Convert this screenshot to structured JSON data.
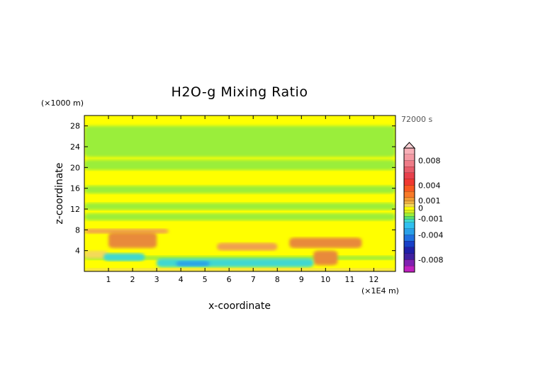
{
  "chart_data": {
    "type": "heatmap",
    "title": "H2O-g Mixing Ratio",
    "xlabel": "x-coordinate",
    "ylabel": "z-coordinate",
    "x_unit": "(×1E4 m)",
    "y_unit": "(×1000 m)",
    "time_label": "72000 s",
    "x_ticks": [
      "1",
      "2",
      "3",
      "4",
      "5",
      "6",
      "7",
      "8",
      "9",
      "10",
      "11",
      "12"
    ],
    "y_ticks": [
      "4",
      "8",
      "12",
      "16",
      "20",
      "24",
      "28"
    ],
    "xlim": [
      0,
      12.9
    ],
    "ylim": [
      0,
      30
    ],
    "colorbar": {
      "labels": [
        "0.008",
        "0.004",
        "0.001",
        "0",
        "-0.001",
        "-0.004",
        "-0.008"
      ],
      "values": [
        0.008,
        0.004,
        0.001,
        0,
        -0.001,
        -0.004,
        -0.008
      ],
      "range": [
        -0.01,
        0.01
      ],
      "extend_max": true
    },
    "colors": {
      "background_value": "#ffff00",
      "slight_negative": "#9aee3a",
      "slight_positive": "#f4d95a",
      "moderate_positive": "#f0a050",
      "strong_positive": "#e88a3a",
      "negative_cyan": "#3fd8d0",
      "negative_blue": "#2aa0e8"
    },
    "bands": [
      {
        "z": [
          2.2,
          3.0
        ],
        "x": [
          0,
          12.9
        ],
        "value": -0.0006
      },
      {
        "z": [
          22,
          28
        ],
        "x": [
          0,
          12.9
        ],
        "value": -0.0006
      },
      {
        "z": [
          19.5,
          21.5
        ],
        "x": [
          0,
          12.9
        ],
        "value": -0.0006
      },
      {
        "z": [
          15,
          16.5
        ],
        "x": [
          0,
          12.9
        ],
        "value": -0.0006
      },
      {
        "z": [
          11.8,
          13.2
        ],
        "x": [
          0,
          12.9
        ],
        "value": -0.0006
      },
      {
        "z": [
          9.8,
          11.2
        ],
        "x": [
          0,
          12.9
        ],
        "value": -0.0006
      },
      {
        "z": [
          7.3,
          8.2
        ],
        "x": [
          0,
          3.5
        ],
        "value": 0.0015
      },
      {
        "z": [
          4.5,
          7.5
        ],
        "x": [
          1.0,
          3.0
        ],
        "value": 0.0025
      },
      {
        "z": [
          2.5,
          4.0
        ],
        "x": [
          0,
          1.0
        ],
        "value": 0.0012
      },
      {
        "z": [
          4.0,
          5.5
        ],
        "x": [
          5.5,
          8.0
        ],
        "value": 0.0015
      },
      {
        "z": [
          4.5,
          6.5
        ],
        "x": [
          8.5,
          11.5
        ],
        "value": 0.0025
      },
      {
        "z": [
          1.2,
          4.0
        ],
        "x": [
          9.5,
          10.5
        ],
        "value": 0.0025
      },
      {
        "z": [
          0.8,
          2.5
        ],
        "x": [
          3.0,
          9.5
        ],
        "value": -0.002
      },
      {
        "z": [
          1.0,
          2.0
        ],
        "x": [
          3.8,
          5.2
        ],
        "value": -0.0045
      },
      {
        "z": [
          2.0,
          3.5
        ],
        "x": [
          0.8,
          2.5
        ],
        "value": -0.002
      },
      {
        "z": [
          0,
          0.6
        ],
        "x": [
          0,
          12.9
        ],
        "value": 0.0012
      }
    ]
  }
}
